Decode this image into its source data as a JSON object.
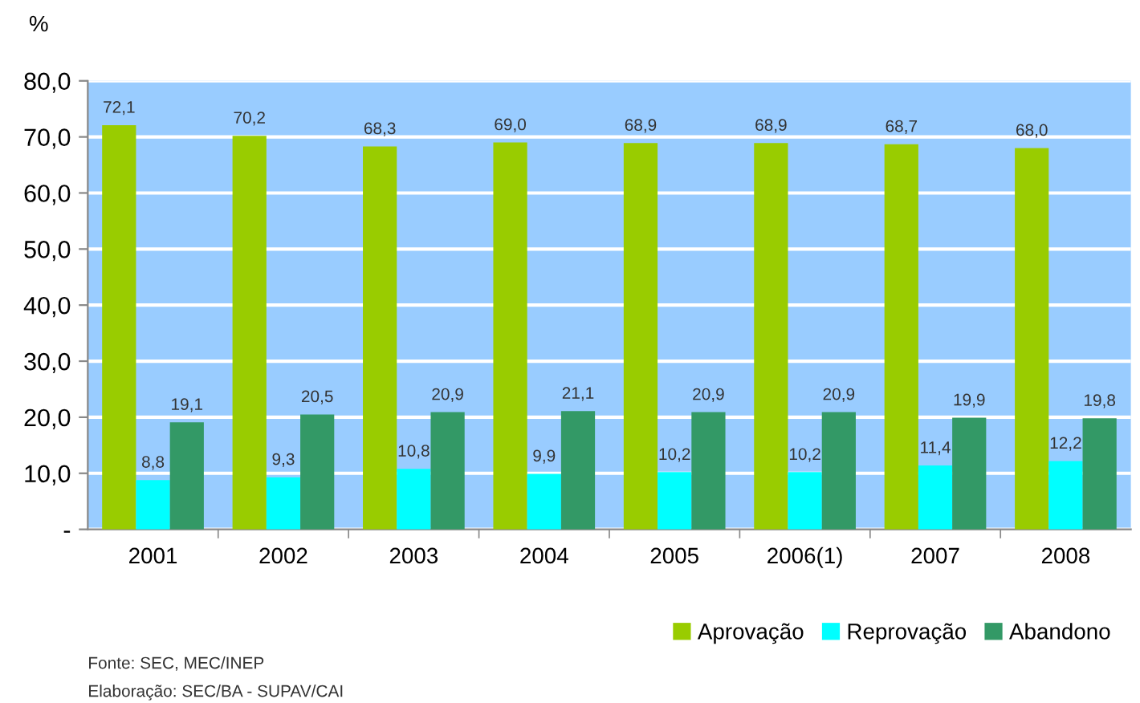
{
  "chart_data": {
    "type": "bar",
    "ylabel": "%",
    "categories": [
      "2001",
      "2002",
      "2003",
      "2004",
      "2005",
      "2006(1)",
      "2007",
      "2008"
    ],
    "series": [
      {
        "name": "Aprovação",
        "color": "#99cc00",
        "values": [
          72.1,
          70.2,
          68.3,
          69.0,
          68.9,
          68.9,
          68.7,
          68.0
        ],
        "value_labels": [
          "72,1",
          "70,2",
          "68,3",
          "69,0",
          "68,9",
          "68,9",
          "68,7",
          "68,0"
        ]
      },
      {
        "name": "Reprovação",
        "color": "#00ffff",
        "values": [
          8.8,
          9.3,
          10.8,
          9.9,
          10.2,
          10.2,
          11.4,
          12.2
        ],
        "value_labels": [
          "8,8",
          "9,3",
          "10,8",
          "9,9",
          "10,2",
          "10,2",
          "11,4",
          "12,2"
        ]
      },
      {
        "name": "Abandono",
        "color": "#339966",
        "values": [
          19.1,
          20.5,
          20.9,
          21.1,
          20.9,
          20.9,
          19.9,
          19.8
        ],
        "value_labels": [
          "19,1",
          "20,5",
          "20,9",
          "21,1",
          "20,9",
          "20,9",
          "19,9",
          "19,8"
        ]
      }
    ],
    "ylim": [
      0,
      80
    ],
    "yticks": [
      {
        "value": 0,
        "label": "-"
      },
      {
        "value": 10,
        "label": "10,0"
      },
      {
        "value": 20,
        "label": "20,0"
      },
      {
        "value": 30,
        "label": "30,0"
      },
      {
        "value": 40,
        "label": "40,0"
      },
      {
        "value": 50,
        "label": "50,0"
      },
      {
        "value": 60,
        "label": "60,0"
      },
      {
        "value": 70,
        "label": "70,0"
      },
      {
        "value": 80,
        "label": "80,0"
      }
    ],
    "grid": "y",
    "legend": "bottom right",
    "annotations": [
      "Fonte: SEC, MEC/INEP",
      "Elaboração: SEC/BA - SUPAV/CAI"
    ]
  }
}
